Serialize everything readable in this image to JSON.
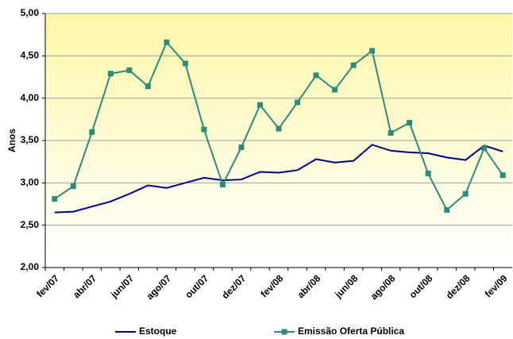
{
  "chart_data": {
    "type": "line",
    "y_label": "Anos",
    "categories": [
      "fev/07",
      null,
      "abr/07",
      null,
      "jun/07",
      null,
      "ago/07",
      null,
      "out/07",
      null,
      "dez/07",
      null,
      "fev/08",
      null,
      "abr/08",
      null,
      "jun/08",
      null,
      "ago/08",
      null,
      "out/08",
      null,
      "dez/08",
      null,
      "fev/09"
    ],
    "series": [
      {
        "name": "Estoque",
        "color": "#000080",
        "marker": false,
        "values": [
          2.65,
          2.66,
          2.72,
          2.78,
          2.87,
          2.97,
          2.94,
          3.0,
          3.06,
          3.03,
          3.04,
          3.13,
          3.12,
          3.15,
          3.28,
          3.24,
          3.26,
          3.45,
          3.38,
          3.36,
          3.35,
          3.3,
          3.27,
          3.44,
          3.37
        ]
      },
      {
        "name": "Emissão Oferta Pública",
        "color": "#2a8c7c",
        "marker": true,
        "values": [
          2.81,
          2.96,
          3.6,
          4.29,
          4.33,
          4.14,
          4.66,
          4.41,
          3.63,
          2.98,
          3.42,
          3.92,
          3.64,
          3.95,
          4.27,
          4.1,
          4.39,
          4.56,
          3.59,
          3.71,
          3.11,
          2.68,
          2.87,
          3.41,
          3.09
        ]
      }
    ],
    "ylim": [
      2,
      5
    ],
    "yticks": [
      {
        "value": 2,
        "label": "2,00"
      },
      {
        "value": 2.5,
        "label": "2,50"
      },
      {
        "value": 3,
        "label": "3,00"
      },
      {
        "value": 3.5,
        "label": "3,50"
      },
      {
        "value": 4,
        "label": "4,00"
      },
      {
        "value": 4.5,
        "label": "4,50"
      },
      {
        "value": 5,
        "label": "5,00"
      }
    ],
    "grid": true,
    "legend": "bottom"
  }
}
